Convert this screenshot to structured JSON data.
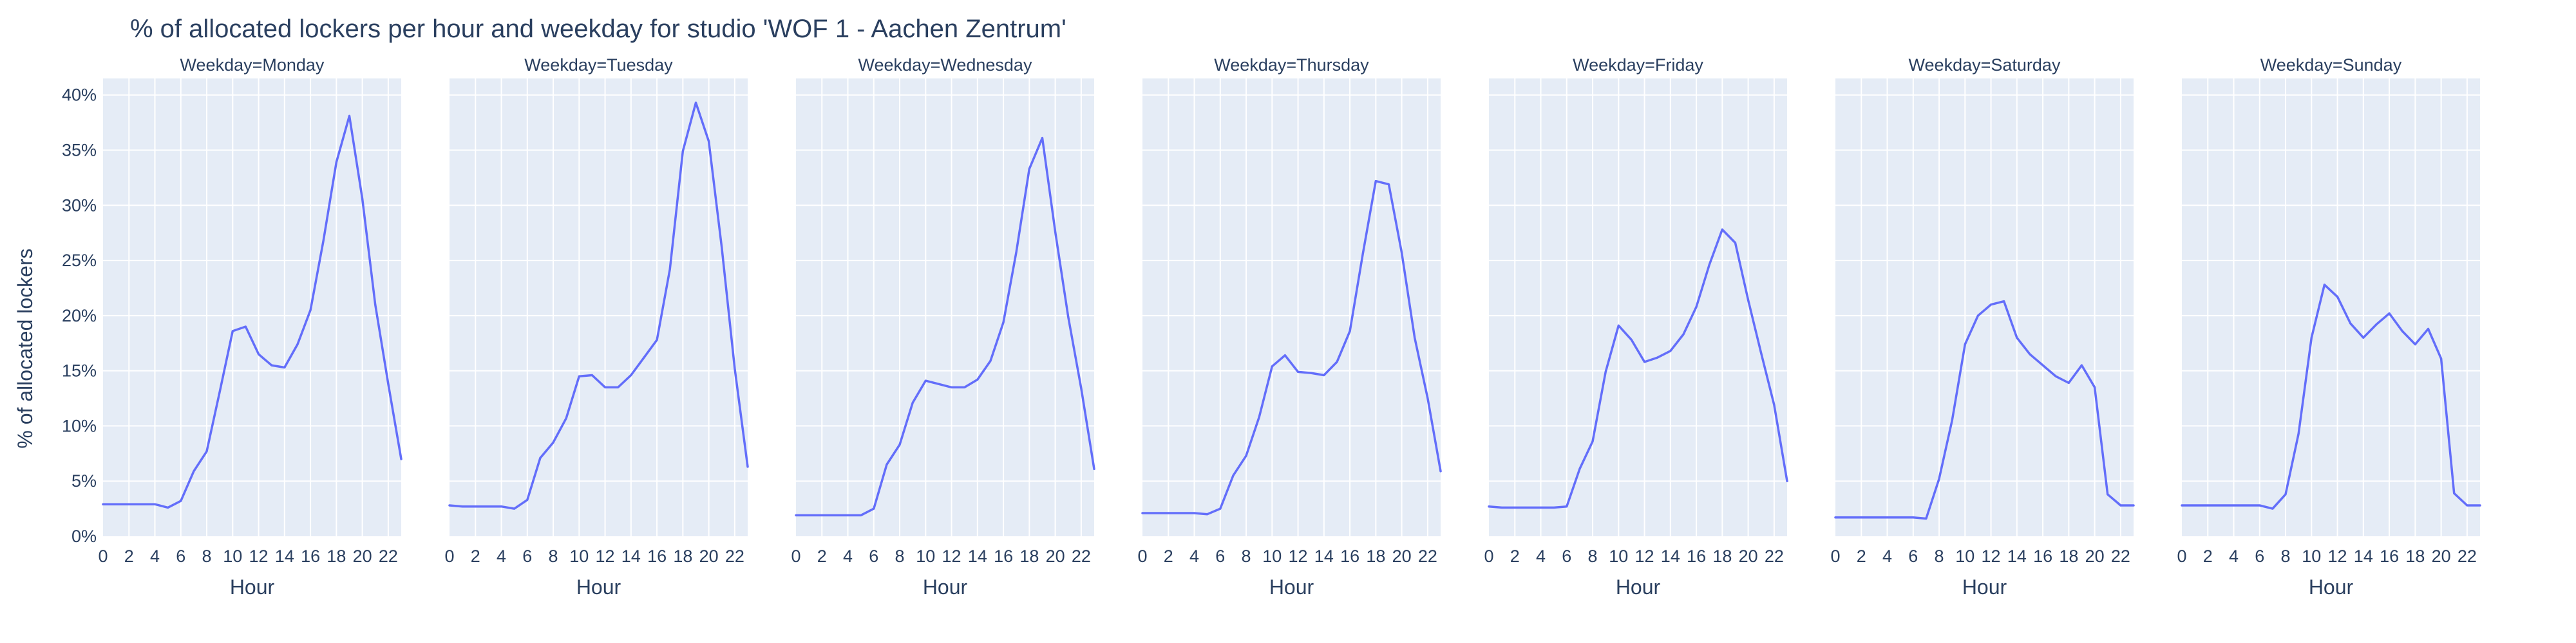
{
  "chart_data": {
    "type": "line",
    "title": "% of allocated lockers per hour and weekday for studio 'WOF 1 - Aachen Zentrum'",
    "xlabel": "Hour",
    "ylabel": "% of allocated lockers",
    "xlim": [
      0,
      23
    ],
    "ylim": [
      0,
      41.5
    ],
    "x_ticks": [
      0,
      2,
      4,
      6,
      8,
      10,
      12,
      14,
      16,
      18,
      20,
      22
    ],
    "y_ticks": [
      0,
      5,
      10,
      15,
      20,
      25,
      30,
      35,
      40
    ],
    "y_tick_labels": [
      "0%",
      "5%",
      "10%",
      "15%",
      "20%",
      "25%",
      "30%",
      "35%",
      "40%"
    ],
    "grid": true,
    "colors": {
      "line": "#636efa",
      "plot_bg": "#e5ecf6",
      "grid": "#ffffff",
      "text": "#2a3f5f"
    },
    "hours": [
      0,
      1,
      2,
      3,
      4,
      5,
      6,
      7,
      8,
      9,
      10,
      11,
      12,
      13,
      14,
      15,
      16,
      17,
      18,
      19,
      20,
      21,
      22,
      23
    ],
    "facets": [
      {
        "label": "Weekday=Monday",
        "values": [
          2.9,
          2.9,
          2.9,
          2.9,
          2.9,
          2.6,
          3.2,
          5.9,
          7.7,
          13.1,
          18.6,
          19.0,
          16.5,
          15.5,
          15.3,
          17.4,
          20.5,
          26.8,
          33.9,
          38.1,
          30.6,
          21.0,
          13.8,
          7.0
        ]
      },
      {
        "label": "Weekday=Tuesday",
        "values": [
          2.8,
          2.7,
          2.7,
          2.7,
          2.7,
          2.5,
          3.3,
          7.1,
          8.5,
          10.7,
          14.5,
          14.6,
          13.5,
          13.5,
          14.6,
          16.2,
          17.8,
          24.2,
          34.9,
          39.3,
          35.8,
          26.2,
          15.2,
          6.3
        ]
      },
      {
        "label": "Weekday=Wednesday",
        "values": [
          1.9,
          1.9,
          1.9,
          1.9,
          1.9,
          1.9,
          2.5,
          6.5,
          8.3,
          12.1,
          14.1,
          13.8,
          13.5,
          13.5,
          14.2,
          15.9,
          19.4,
          25.8,
          33.3,
          36.1,
          27.6,
          19.9,
          13.4,
          6.1
        ]
      },
      {
        "label": "Weekday=Thursday",
        "values": [
          2.1,
          2.1,
          2.1,
          2.1,
          2.1,
          2.0,
          2.5,
          5.5,
          7.3,
          10.8,
          15.4,
          16.4,
          14.9,
          14.8,
          14.6,
          15.8,
          18.6,
          25.6,
          32.2,
          31.9,
          25.7,
          18.0,
          12.5,
          5.9
        ]
      },
      {
        "label": "Weekday=Friday",
        "values": [
          2.7,
          2.6,
          2.6,
          2.6,
          2.6,
          2.6,
          2.7,
          6.1,
          8.6,
          14.9,
          19.1,
          17.8,
          15.8,
          16.2,
          16.8,
          18.3,
          20.8,
          24.6,
          27.8,
          26.6,
          21.4,
          16.6,
          11.9,
          5.0
        ]
      },
      {
        "label": "Weekday=Saturday",
        "values": [
          1.7,
          1.7,
          1.7,
          1.7,
          1.7,
          1.7,
          1.7,
          1.6,
          5.2,
          10.5,
          17.4,
          20.0,
          21.0,
          21.3,
          18.0,
          16.5,
          15.5,
          14.5,
          13.9,
          15.5,
          13.5,
          3.8,
          2.8,
          2.8
        ]
      },
      {
        "label": "Weekday=Sunday",
        "values": [
          2.8,
          2.8,
          2.8,
          2.8,
          2.8,
          2.8,
          2.8,
          2.5,
          3.8,
          9.3,
          18.0,
          22.8,
          21.7,
          19.3,
          18.0,
          19.2,
          20.2,
          18.6,
          17.4,
          18.8,
          16.1,
          3.9,
          2.8,
          2.8
        ]
      }
    ]
  }
}
